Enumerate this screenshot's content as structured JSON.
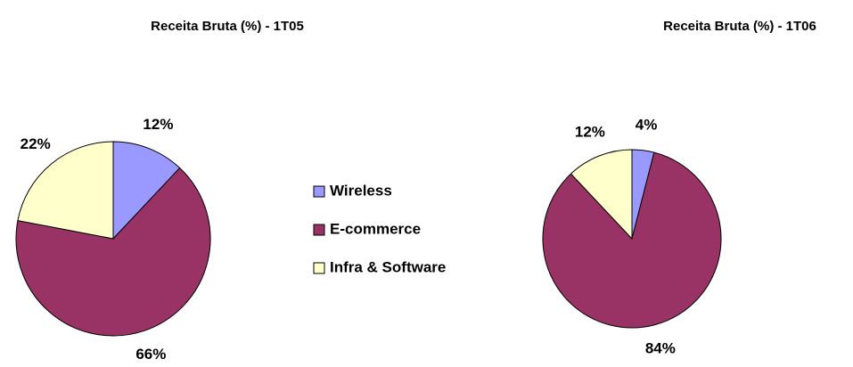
{
  "chart_data": [
    {
      "type": "pie",
      "title": "Receita Bruta (%) - 1T05",
      "categories": [
        "Wireless",
        "E-commerce",
        "Infra & Software"
      ],
      "colors": [
        "#9999ff",
        "#993366",
        "#ffffcc"
      ],
      "values": [
        12,
        66,
        22
      ],
      "value_labels": [
        "12%",
        "66%",
        "22%"
      ]
    },
    {
      "type": "pie",
      "title": "Receita Bruta (%) - 1T06",
      "values": [
        4,
        84,
        12
      ],
      "value_labels": [
        "4%",
        "84%",
        "12%"
      ]
    }
  ]
}
